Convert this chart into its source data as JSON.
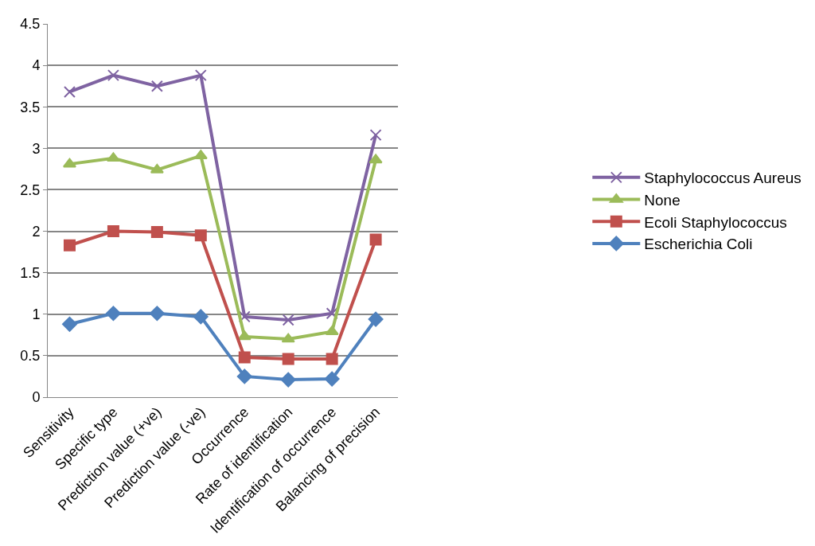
{
  "chart_data": {
    "type": "line",
    "categories": [
      "Sensitivity",
      "Specific type",
      "Prediction value (+ve)",
      "Prediction value (-ve)",
      "Occurrence",
      "Rate of identification",
      "Identification of occurrence",
      "Balancing of precision"
    ],
    "series": [
      {
        "name": "Staphylococcus Aureus",
        "color": "#7f63a2",
        "marker": "cross",
        "values": [
          3.68,
          3.88,
          3.75,
          3.88,
          0.97,
          0.93,
          1.01,
          3.16
        ]
      },
      {
        "name": "None",
        "color": "#9bbb59",
        "marker": "triangle",
        "values": [
          2.81,
          2.88,
          2.74,
          2.91,
          0.73,
          0.7,
          0.79,
          2.86
        ]
      },
      {
        "name": "Ecoli Staphylococcus",
        "color": "#c0504d",
        "marker": "square",
        "values": [
          1.83,
          2.0,
          1.99,
          1.95,
          0.48,
          0.46,
          0.46,
          1.9
        ]
      },
      {
        "name": "Escherichia Coli",
        "color": "#4f81bd",
        "marker": "diamond",
        "values": [
          0.88,
          1.01,
          1.01,
          0.97,
          0.25,
          0.21,
          0.22,
          0.94
        ]
      }
    ],
    "ylim": [
      0,
      4.5
    ],
    "yticks": [
      0,
      0.5,
      1,
      1.5,
      2,
      2.5,
      3,
      3.5,
      4,
      4.5
    ],
    "grid": "y",
    "legend": "right",
    "line_style": "solid"
  }
}
